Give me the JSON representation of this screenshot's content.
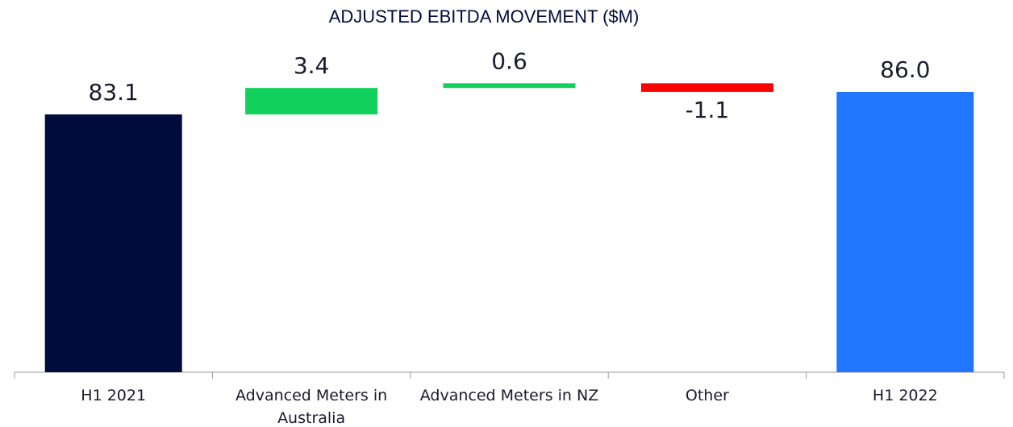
{
  "chart_data": {
    "type": "waterfall",
    "title": "ADJUSTED EBITDA MOVEMENT ($M)",
    "categories": [
      "H1 2021",
      "Advanced Meters in Australia",
      "Advanced Meters in NZ",
      "Other",
      "H1 2022"
    ],
    "values": [
      83.1,
      3.4,
      0.6,
      -1.1,
      86.0
    ],
    "value_labels": [
      "83.1",
      "3.4",
      "0.6",
      "-1.1",
      "86.0"
    ],
    "colors": [
      "#000c3c",
      "#12d05c",
      "#12d05c",
      "#ff0000",
      "#2176ff"
    ],
    "ylim": [
      50,
      92
    ]
  }
}
